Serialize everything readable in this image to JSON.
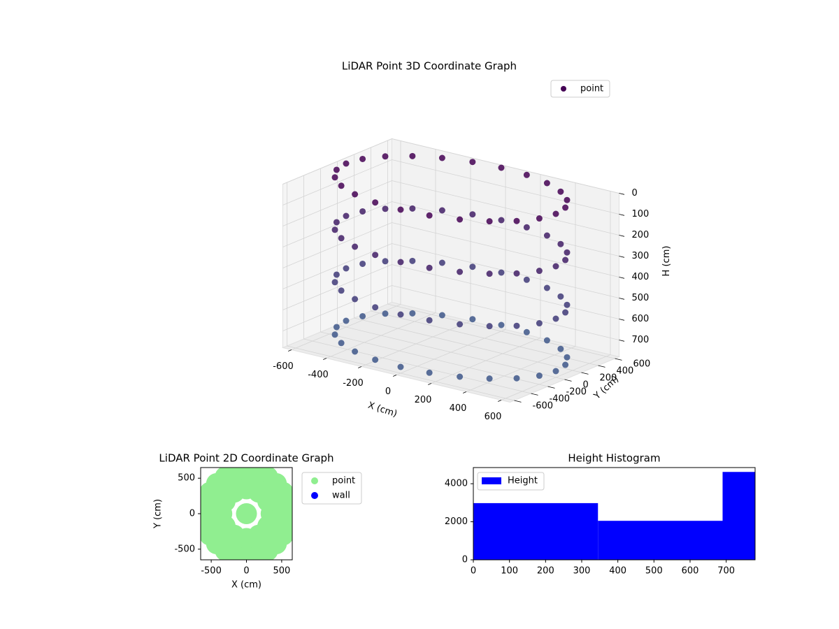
{
  "chart_data": [
    {
      "type": "scatter3d",
      "title": "LiDAR Point 3D Coordinate Graph",
      "xlabel": "X (cm)",
      "ylabel": "Y (cm)",
      "zlabel": "H (cm)",
      "xlim": [
        -650,
        650
      ],
      "ylim": [
        -650,
        650
      ],
      "zlim": [
        0,
        780
      ],
      "zinverted": true,
      "xticks": [
        -600,
        -400,
        -200,
        0,
        200,
        400,
        600
      ],
      "yticks": [
        -600,
        -400,
        -200,
        0,
        200,
        400,
        600
      ],
      "zticks": [
        0,
        100,
        200,
        300,
        400,
        500,
        600,
        700
      ],
      "grid": true,
      "legend": "upper right",
      "colormap": [
        "#440154",
        "#3e5a8c"
      ],
      "series": [
        {
          "name": "point",
          "color": "#440154",
          "x": [
            600,
            580,
            520,
            424,
            300,
            155,
            0,
            -155,
            -300,
            -424,
            -520,
            -580,
            -600,
            -580,
            -520,
            -424,
            -300,
            -155,
            0,
            155,
            300,
            424,
            520,
            580,
            600,
            580,
            520,
            424,
            300,
            155,
            0,
            -155,
            -300,
            -424,
            -520,
            -580,
            -600,
            -580,
            -520,
            -424,
            -300,
            -155,
            0,
            155,
            300,
            424,
            520,
            580,
            600,
            580,
            520,
            424,
            300,
            155,
            0,
            -155,
            -300,
            -424,
            -520,
            -580,
            -600,
            -580,
            -520,
            -424,
            -300,
            -155,
            0,
            155,
            300,
            424,
            520,
            580,
            600,
            580,
            520,
            424,
            300,
            155,
            0,
            -155,
            -300,
            -424,
            -520,
            -580,
            -600,
            -580,
            -520,
            -424,
            -300,
            -155,
            0,
            155,
            300,
            424,
            520,
            580
          ],
          "y": [
            0,
            155,
            300,
            424,
            520,
            580,
            600,
            580,
            520,
            424,
            300,
            155,
            0,
            -155,
            -300,
            -424,
            -520,
            -580,
            -600,
            -580,
            -520,
            -424,
            -300,
            -155,
            0,
            155,
            300,
            424,
            520,
            580,
            600,
            580,
            520,
            424,
            300,
            155,
            0,
            -155,
            -300,
            -424,
            -520,
            -580,
            -600,
            -580,
            -520,
            -424,
            -300,
            -155,
            0,
            155,
            300,
            424,
            520,
            580,
            600,
            580,
            520,
            424,
            300,
            155,
            0,
            -155,
            -300,
            -424,
            -520,
            -580,
            -600,
            -580,
            -520,
            -424,
            -300,
            -155,
            0,
            155,
            300,
            424,
            520,
            580,
            600,
            580,
            520,
            424,
            300,
            155,
            0,
            -155,
            -300,
            -424,
            -520,
            -580,
            -600,
            -580,
            -520,
            -424,
            -300,
            -155
          ],
          "z": [
            0,
            0,
            0,
            0,
            0,
            0,
            0,
            0,
            0,
            0,
            0,
            0,
            0,
            0,
            0,
            0,
            0,
            0,
            0,
            0,
            0,
            0,
            0,
            0,
            250,
            250,
            250,
            250,
            250,
            250,
            250,
            250,
            250,
            250,
            250,
            250,
            250,
            250,
            250,
            250,
            250,
            250,
            250,
            250,
            250,
            250,
            250,
            250,
            500,
            500,
            500,
            500,
            500,
            500,
            500,
            500,
            500,
            500,
            500,
            500,
            500,
            500,
            500,
            500,
            500,
            500,
            500,
            500,
            500,
            500,
            500,
            500,
            750,
            750,
            750,
            750,
            750,
            750,
            750,
            750,
            750,
            750,
            750,
            750,
            750,
            750,
            750,
            750,
            750,
            750,
            750,
            750,
            750,
            750,
            750,
            750
          ]
        }
      ]
    },
    {
      "type": "scatter",
      "title": "LiDAR Point 2D Coordinate Graph",
      "xlabel": "X (cm)",
      "ylabel": "Y (cm)",
      "xlim": [
        -650,
        650
      ],
      "ylim": [
        -650,
        650
      ],
      "xticks": [
        -500,
        0,
        500
      ],
      "yticks": [
        -500,
        0,
        500
      ],
      "legend": "outside right",
      "series": [
        {
          "name": "point",
          "color": "#90ee90",
          "x": [
            600,
            580,
            520,
            424,
            300,
            155,
            0,
            -155,
            -300,
            -424,
            -520,
            -580,
            -600,
            -580,
            -520,
            -424,
            -300,
            -155,
            0,
            155,
            300,
            424,
            520,
            580,
            350,
            303,
            175,
            0,
            -175,
            -303,
            -350,
            -303,
            -175,
            0,
            175,
            303,
            0
          ],
          "y": [
            0,
            155,
            300,
            424,
            520,
            580,
            600,
            580,
            520,
            424,
            300,
            155,
            0,
            -155,
            -300,
            -424,
            -520,
            -580,
            -600,
            -580,
            -520,
            -424,
            -300,
            -155,
            0,
            175,
            303,
            350,
            303,
            175,
            0,
            -175,
            -303,
            -350,
            -303,
            -175,
            0
          ]
        },
        {
          "name": "wall",
          "color": "#0000ff",
          "x": [],
          "y": []
        }
      ]
    },
    {
      "type": "histogram",
      "title": "Height Histogram",
      "bins": [
        0,
        345,
        690,
        780
      ],
      "values": [
        2980,
        2050,
        4620
      ],
      "name": "Height",
      "color": "#0000ff",
      "xlim": [
        0,
        780
      ],
      "ylim": [
        0,
        4850
      ],
      "xticks": [
        0,
        100,
        200,
        300,
        400,
        500,
        600,
        700
      ],
      "yticks": [
        0,
        2000,
        4000
      ],
      "legend": "upper left"
    }
  ]
}
